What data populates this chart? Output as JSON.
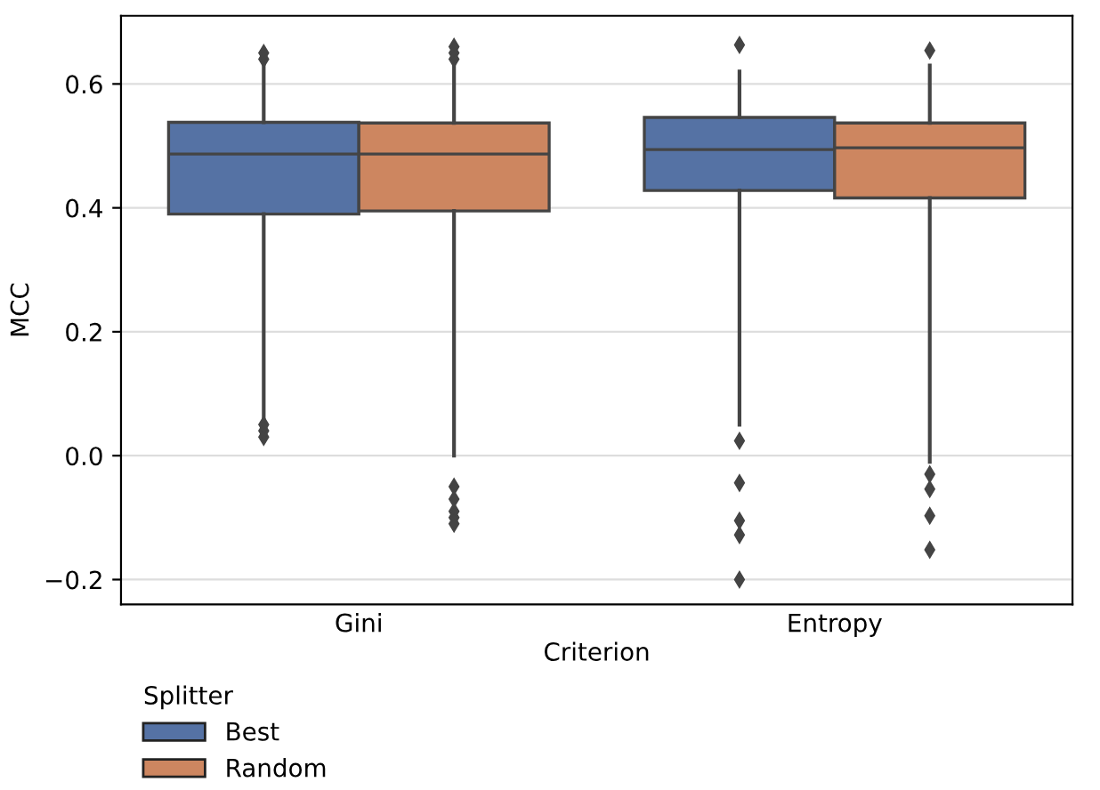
{
  "chart_data": {
    "type": "box",
    "xlabel": "Criterion",
    "ylabel": "MCC",
    "legend_title": "Splitter",
    "categories": [
      "Gini",
      "Entropy"
    ],
    "series": [
      {
        "name": "Best",
        "color": "#5572a4",
        "boxes": [
          {
            "low": 0.06,
            "q1": 0.39,
            "median": 0.487,
            "q3": 0.538,
            "high": 0.63,
            "outliers": [
              0.03,
              0.04,
              0.05,
              0.64,
              0.65
            ]
          },
          {
            "low": 0.05,
            "q1": 0.428,
            "median": 0.494,
            "q3": 0.546,
            "high": 0.62,
            "outliers": [
              0.024,
              -0.044,
              -0.105,
              -0.128,
              -0.2,
              0.663
            ]
          }
        ]
      },
      {
        "name": "Random",
        "color": "#cd8660",
        "boxes": [
          {
            "low": 0.0,
            "q1": 0.395,
            "median": 0.487,
            "q3": 0.537,
            "high": 0.63,
            "outliers": [
              -0.05,
              -0.07,
              -0.09,
              -0.1,
              -0.11,
              0.64,
              0.65,
              0.66
            ]
          },
          {
            "low": -0.01,
            "q1": 0.416,
            "median": 0.497,
            "q3": 0.537,
            "high": 0.63,
            "outliers": [
              -0.03,
              -0.054,
              -0.097,
              -0.152,
              0.654
            ]
          }
        ]
      }
    ],
    "ylim": [
      -0.24,
      0.71
    ],
    "yticks": [
      {
        "value": -0.2,
        "label": "−0.2"
      },
      "0.0",
      0.2,
      0.4,
      0.6
    ],
    "grid": "y",
    "legend": "bottom left",
    "marker": "diamond"
  }
}
